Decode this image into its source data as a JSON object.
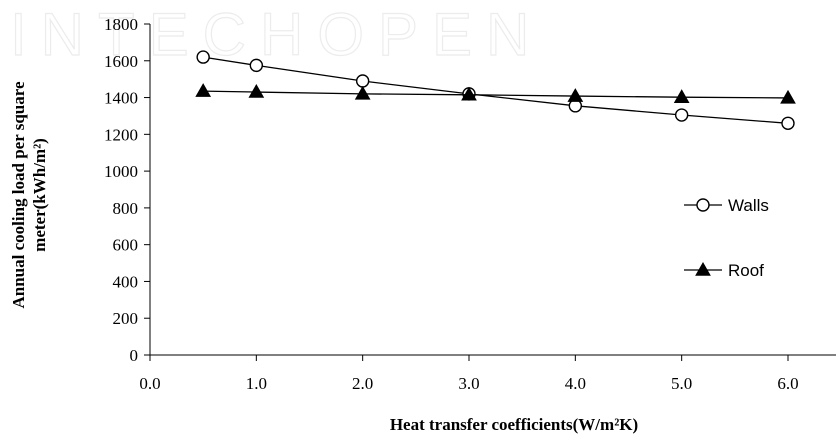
{
  "chart_data": {
    "type": "line",
    "xlabel": "Heat transfer coefficients(W/m²K)",
    "ylabel_lines": [
      "Annual cooling load per square",
      "meter(kWh/m²)"
    ],
    "xlim": [
      0.0,
      6.0
    ],
    "ylim": [
      0,
      1800
    ],
    "x_ticks": [
      "0.0",
      "1.0",
      "2.0",
      "3.0",
      "4.0",
      "5.0",
      "6.0"
    ],
    "y_ticks": [
      "0",
      "200",
      "400",
      "600",
      "800",
      "1000",
      "1200",
      "1400",
      "1600",
      "1800"
    ],
    "grid": false,
    "legend_position": "right",
    "series": [
      {
        "name": "Walls",
        "marker": "open-circle",
        "x": [
          0.5,
          1.0,
          2.0,
          3.0,
          4.0,
          5.0,
          6.0
        ],
        "values": [
          1620,
          1575,
          1490,
          1420,
          1355,
          1305,
          1260
        ]
      },
      {
        "name": "Roof",
        "marker": "filled-triangle",
        "x": [
          0.5,
          1.0,
          2.0,
          3.0,
          4.0,
          5.0,
          6.0
        ],
        "values": [
          1435,
          1430,
          1420,
          1415,
          1408,
          1402,
          1398
        ]
      }
    ],
    "colors": {
      "line": "#000000",
      "axis": "#000000",
      "watermark": "#ececec"
    }
  },
  "watermark_text": "INTECHOPEN"
}
